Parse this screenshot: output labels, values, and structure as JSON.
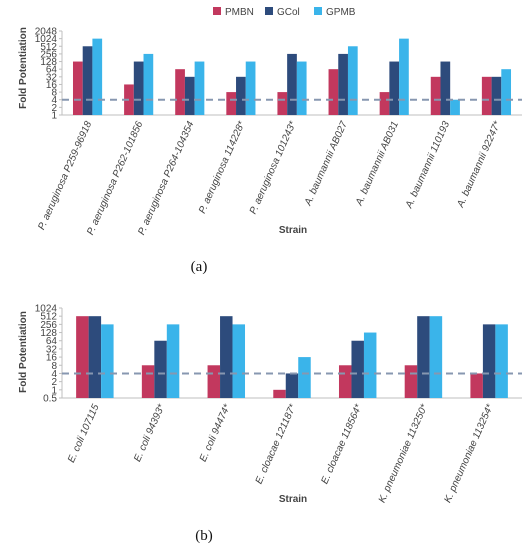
{
  "colors": {
    "PMBN": "#C2385E",
    "GCol": "#2D4B7C",
    "GPMB": "#3AB4EA",
    "threshold": "#8797B0"
  },
  "legend": [
    "PMBN",
    "GCol",
    "GPMB"
  ],
  "chart_data": [
    {
      "type": "bar",
      "panel_label": "(a)",
      "ylabel": "Fold Potentiation",
      "xlabel": "Strain",
      "y_scale": "log2",
      "ylim": [
        1,
        2048
      ],
      "y_ticks": [
        "1",
        "2",
        "4",
        "8",
        "16",
        "32",
        "64",
        "128",
        "256",
        "512",
        "1024",
        "2048"
      ],
      "threshold": 4,
      "categories": [
        "P. aeruginosa P259-96918",
        "P. aeruginosa P262-101856",
        "P. aeruginosa P264-104354",
        "P. aeruginosa 114228*",
        "P. aeruginosa 101243*",
        "A. baumannii AB027",
        "A. baumannii AB031",
        "A. baumannii 110193",
        "A. baumannii 92247*"
      ],
      "series": [
        {
          "name": "PMBN",
          "values": [
            128,
            16,
            64,
            8,
            8,
            64,
            8,
            32,
            32
          ]
        },
        {
          "name": "GCol",
          "values": [
            512,
            128,
            32,
            32,
            256,
            256,
            128,
            128,
            32
          ]
        },
        {
          "name": "GPMB",
          "values": [
            1024,
            256,
            128,
            128,
            128,
            512,
            1024,
            4,
            64
          ]
        }
      ]
    },
    {
      "type": "bar",
      "panel_label": "(b)",
      "ylabel": "Fold Potentiation",
      "xlabel": "Strain",
      "y_scale": "log2",
      "ylim": [
        0.5,
        1024
      ],
      "y_ticks": [
        "0.5",
        "1",
        "2",
        "4",
        "8",
        "16",
        "32",
        "64",
        "128",
        "256",
        "512",
        "1024"
      ],
      "threshold": 4,
      "categories": [
        "E. coli 107115",
        "E. coli 94393*",
        "E. coli 94474*",
        "E. cloacae 121187*",
        "E. cloacae 118564*",
        "K. pneumoniae 113250*",
        "K. pneumoniae 113254*"
      ],
      "series": [
        {
          "name": "PMBN",
          "values": [
            512,
            8,
            8,
            1,
            8,
            8,
            4
          ]
        },
        {
          "name": "GCol",
          "values": [
            512,
            64,
            512,
            4,
            64,
            512,
            256
          ]
        },
        {
          "name": "GPMB",
          "values": [
            256,
            256,
            256,
            16,
            128,
            512,
            256
          ]
        }
      ]
    }
  ]
}
